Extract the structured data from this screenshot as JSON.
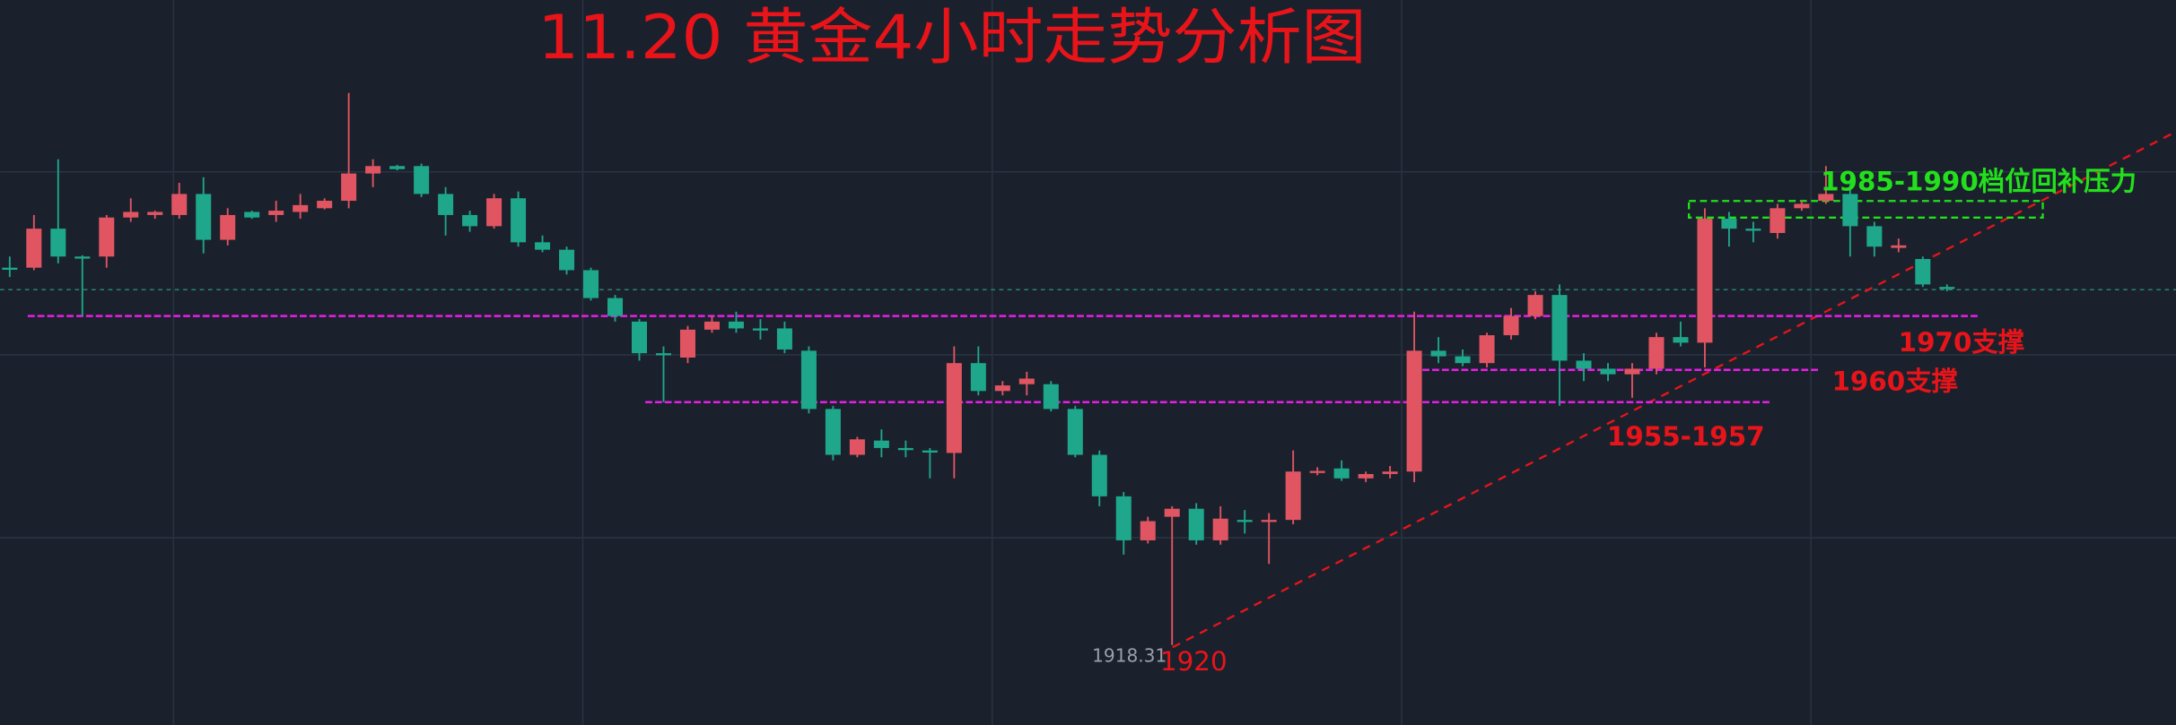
{
  "chart_data": {
    "type": "candlestick",
    "title": "11.20 黄金4小时走势分析图",
    "up_color": "#e15562",
    "down_color": "#1ea78b",
    "level_color": "#e81ee8",
    "ylim": [
      1905.4,
      2022.4
    ],
    "open": [
      1979.2,
      1979.2,
      1985.5,
      1981.0,
      1981.0,
      1987.3,
      1987.7,
      1987.7,
      1991.1,
      1983.7,
      1988.2,
      1987.7,
      1988.2,
      1988.8,
      1990.0,
      1994.4,
      1995.6,
      1995.6,
      1991.1,
      1987.7,
      1985.9,
      1990.4,
      1983.3,
      1982.1,
      1978.8,
      1974.3,
      1970.5,
      1965.4,
      1964.7,
      1969.2,
      1970.5,
      1969.4,
      1969.4,
      1965.8,
      1956.4,
      1949.0,
      1951.3,
      1950.1,
      1949.7,
      1949.3,
      1963.8,
      1959.3,
      1960.4,
      1960.4,
      1956.4,
      1949.0,
      1942.3,
      1935.2,
      1939.0,
      1940.3,
      1935.2,
      1938.5,
      1938.4,
      1938.5,
      1946.3,
      1946.8,
      1945.2,
      1945.9,
      1946.3,
      1965.8,
      1964.9,
      1963.8,
      1968.3,
      1971.4,
      1974.8,
      1964.2,
      1962.9,
      1962.0,
      1962.9,
      1968.0,
      1967.1,
      1987.1,
      1985.5,
      1984.8,
      1988.8,
      1990.0,
      1991.1,
      1985.9,
      1982.4,
      1980.6,
      1976.1
    ],
    "high": [
      1981.0,
      1987.7,
      1996.7,
      1981.2,
      1987.7,
      1990.4,
      1988.4,
      1992.9,
      1993.8,
      1988.8,
      1988.4,
      1990.0,
      1991.1,
      1990.4,
      2007.4,
      1996.7,
      1995.8,
      1996.0,
      1992.2,
      1988.4,
      1991.1,
      1991.5,
      1984.4,
      1982.6,
      1979.2,
      1974.8,
      1970.9,
      1966.5,
      1969.8,
      1971.4,
      1972.1,
      1970.9,
      1970.5,
      1966.5,
      1956.9,
      1951.9,
      1953.1,
      1951.3,
      1950.1,
      1966.5,
      1966.5,
      1960.9,
      1962.4,
      1960.9,
      1956.9,
      1949.7,
      1943.0,
      1939.0,
      1940.7,
      1941.2,
      1940.7,
      1940.1,
      1939.6,
      1949.7,
      1947.0,
      1948.1,
      1946.3,
      1947.2,
      1972.1,
      1968.0,
      1966.0,
      1968.7,
      1972.7,
      1975.4,
      1976.5,
      1965.4,
      1963.8,
      1963.8,
      1968.7,
      1970.5,
      1988.8,
      1988.2,
      1986.6,
      1989.5,
      1990.0,
      1995.6,
      1993.3,
      1986.6,
      1983.9,
      1981.0,
      1976.5
    ],
    "low": [
      1977.7,
      1978.8,
      1979.9,
      1971.4,
      1979.2,
      1986.6,
      1987.1,
      1987.1,
      1981.5,
      1982.8,
      1987.1,
      1986.6,
      1987.1,
      1988.6,
      1988.8,
      1992.2,
      1994.9,
      1990.6,
      1984.4,
      1985.0,
      1985.5,
      1982.6,
      1981.7,
      1978.1,
      1973.9,
      1970.5,
      1964.2,
      1957.5,
      1963.8,
      1968.7,
      1968.7,
      1967.6,
      1965.4,
      1955.7,
      1948.1,
      1948.6,
      1948.6,
      1948.6,
      1945.2,
      1945.2,
      1958.6,
      1958.6,
      1958.6,
      1956.0,
      1948.6,
      1940.7,
      1932.9,
      1934.7,
      1918.31,
      1934.5,
      1934.5,
      1936.3,
      1931.4,
      1937.8,
      1945.7,
      1944.8,
      1944.6,
      1945.2,
      1944.6,
      1963.8,
      1963.3,
      1963.1,
      1967.6,
      1970.9,
      1956.9,
      1960.9,
      1960.9,
      1958.2,
      1962.0,
      1966.5,
      1963.1,
      1982.6,
      1983.3,
      1983.9,
      1988.4,
      1989.5,
      1981.0,
      1981.0,
      1981.7,
      1976.1,
      1975.4
    ],
    "close": [
      1979.0,
      1985.5,
      1981.0,
      1980.8,
      1987.3,
      1988.2,
      1988.2,
      1991.1,
      1983.7,
      1987.7,
      1987.3,
      1988.4,
      1989.3,
      1990.0,
      1994.4,
      1995.6,
      1995.1,
      1991.1,
      1987.7,
      1985.9,
      1990.4,
      1983.3,
      1982.1,
      1978.8,
      1974.3,
      1971.4,
      1965.4,
      1965.2,
      1969.2,
      1970.5,
      1969.4,
      1969.3,
      1966.0,
      1956.4,
      1949.0,
      1951.5,
      1950.1,
      1950.0,
      1949.6,
      1963.8,
      1959.3,
      1960.2,
      1961.3,
      1956.4,
      1949.0,
      1942.3,
      1935.2,
      1938.3,
      1940.3,
      1935.2,
      1938.7,
      1938.4,
      1938.5,
      1946.3,
      1946.4,
      1945.2,
      1945.9,
      1946.3,
      1965.8,
      1964.9,
      1963.8,
      1968.3,
      1971.4,
      1974.8,
      1964.2,
      1962.9,
      1962.0,
      1962.9,
      1968.0,
      1967.1,
      1987.1,
      1985.5,
      1985.4,
      1988.8,
      1989.5,
      1991.1,
      1985.9,
      1982.6,
      1982.8,
      1976.5,
      1975.9
    ],
    "levels": [
      1971.4,
      1962.7,
      1957.5
    ],
    "annotations": [
      "1985-1990档位回补压力",
      "1970支撑",
      "1960支撑",
      "1955-1957",
      "1920",
      "1918.31"
    ]
  }
}
